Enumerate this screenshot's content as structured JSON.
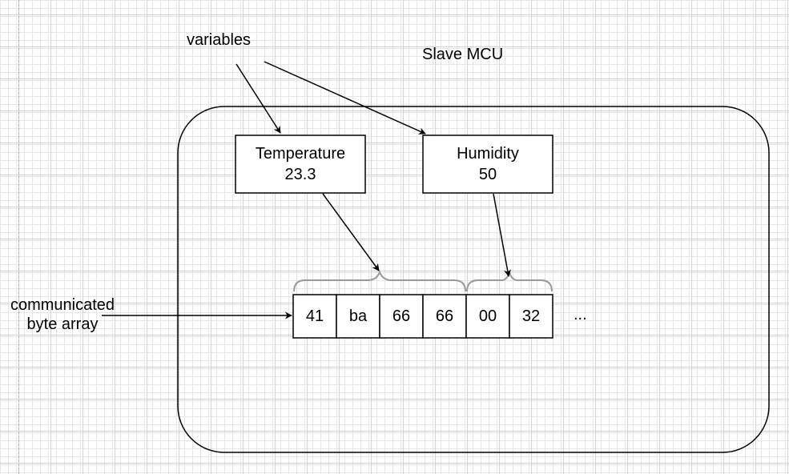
{
  "labels": {
    "variables": "variables",
    "slave_mcu": "Slave MCU",
    "communicated": "communicated",
    "byte_array": "byte array",
    "ellipsis": "..."
  },
  "variables": [
    {
      "name": "Temperature",
      "value": "23.3"
    },
    {
      "name": "Humidity",
      "value": "50"
    }
  ],
  "byte_array": [
    "41",
    "ba",
    "66",
    "66",
    "00",
    "32"
  ],
  "colors": {
    "stroke": "#000000",
    "brace": "#999999",
    "grid_minor": "#e6e6e6",
    "grid_major": "#d4d4d4"
  }
}
